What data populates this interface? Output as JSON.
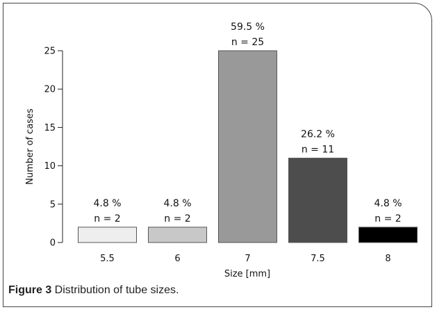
{
  "chart_data": {
    "type": "bar",
    "categories": [
      "5.5",
      "6",
      "7",
      "7.5",
      "8"
    ],
    "values": [
      2,
      2,
      25,
      11,
      2
    ],
    "percent_labels": [
      "4.8 %",
      "4.8 %",
      "59.5 %",
      "26.2 %",
      "4.8 %"
    ],
    "n_labels": [
      "n = 2",
      "n = 2",
      "n = 25",
      "n = 11",
      "n = 2"
    ],
    "colors": [
      "#eeeeee",
      "#c8c8c8",
      "#999999",
      "#4d4d4d",
      "#000000"
    ],
    "xlabel": "Size [mm]",
    "ylabel": "Number of cases",
    "ylim": [
      0,
      25
    ],
    "yticks": [
      0,
      5,
      10,
      15,
      20,
      25
    ],
    "grid": false
  },
  "caption": {
    "figure_label": "Figure 3",
    "text": " Distribution of tube sizes."
  }
}
